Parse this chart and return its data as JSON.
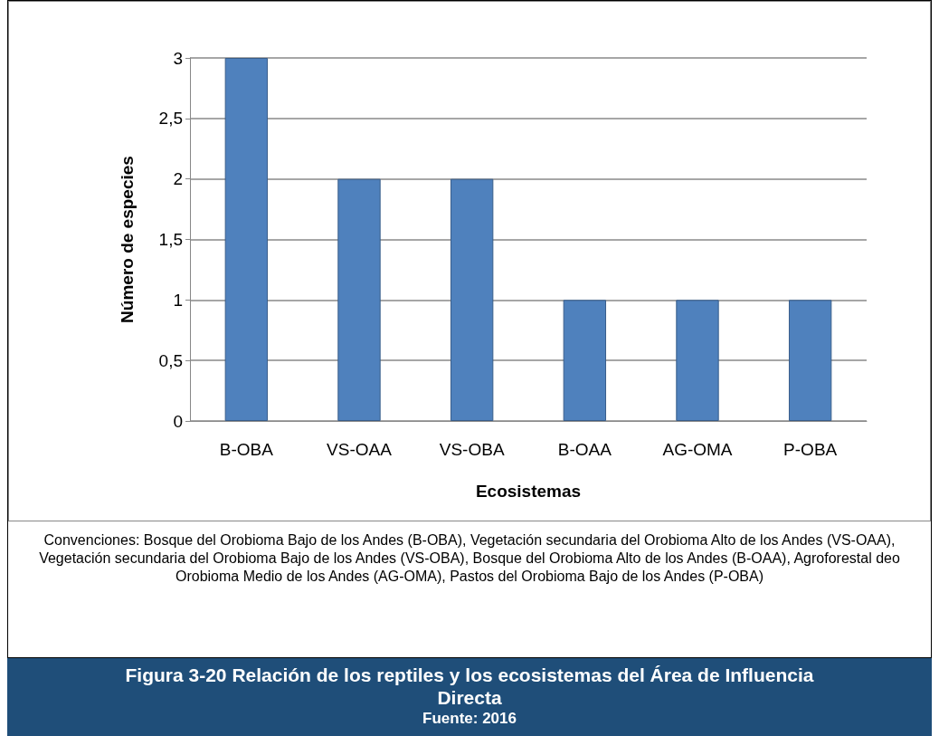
{
  "chart_data": {
    "type": "bar",
    "title": "Figura 3-20 Relación de los reptiles y los ecosistemas del Área de Influencia Directa",
    "xlabel": "Ecosistemas",
    "ylabel": "Número de especies",
    "categories": [
      "B-OBA",
      "VS-OAA",
      "VS-OBA",
      "B-OAA",
      "AG-OMA",
      "P-OBA"
    ],
    "values": [
      3,
      2,
      2,
      1,
      1,
      1
    ],
    "color": "#4f81bd",
    "ylim": [
      0,
      3
    ],
    "yticks": [
      0,
      {
        "value": 0.5,
        "label": "0,5"
      },
      1,
      {
        "value": 1.5,
        "label": "1,5"
      },
      2,
      {
        "value": 2.5,
        "label": "2,5"
      },
      3
    ],
    "grid": "y",
    "annotations": [
      "Convenciones: Bosque del Orobioma Bajo de los Andes (B-OBA), Vegetación secundaria del Orobioma Alto de los Andes (VS-OAA), Vegetación secundaria del Orobioma Bajo de los Andes (VS-OBA), Bosque del Orobioma Alto de los Andes (B-OAA), Agroforestal deo Orobioma Medio de los Andes (AG-OMA), Pastos del Orobioma Bajo de los Andes (P-OBA)",
      "Fuente: 2016"
    ]
  }
}
